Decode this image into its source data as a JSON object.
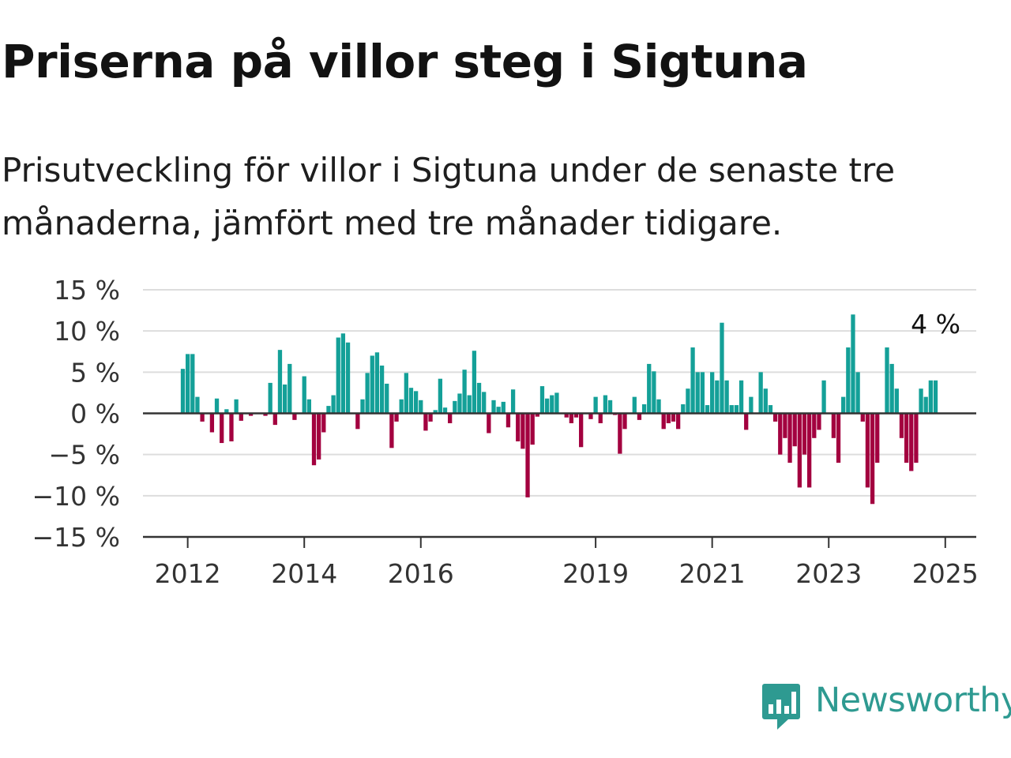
{
  "title": "Priserna på villor steg i Sigtuna",
  "subtitle": "Prisutveckling för villor i Sigtuna under de senaste tre månaderna, jämfört med tre månader tidigare.",
  "brand": {
    "name": "Newsworthy",
    "icon": "newsworthy-logo-icon",
    "color": "#2e9a91"
  },
  "colors": {
    "positive": "#14a098",
    "negative": "#a3003f",
    "grid": "#dddddd",
    "axis": "#333333"
  },
  "chart_data": {
    "type": "bar",
    "title": "",
    "xlabel": "",
    "ylabel": "",
    "ylim": [
      -15,
      15
    ],
    "yticks": [
      15,
      10,
      5,
      0,
      -5,
      -10,
      -15
    ],
    "ytick_labels": [
      "15 %",
      "10 %",
      "5 %",
      "0 %",
      "−5 %",
      "−10 %",
      "−15 %"
    ],
    "xtick_labels": [
      "2012",
      "2014",
      "2016",
      "2019",
      "2021",
      "2023",
      "2025"
    ],
    "xtick_dates": [
      "2012-01",
      "2014-01",
      "2016-01",
      "2019-01",
      "2021-01",
      "2023-01",
      "2025-01"
    ],
    "grid": true,
    "start": "2011-12",
    "last_label": "4 %",
    "values": [
      5.4,
      7.2,
      7.2,
      2.0,
      -1.0,
      0,
      -2.3,
      1.8,
      -3.6,
      0.5,
      -3.4,
      1.7,
      -0.9,
      0,
      -0.3,
      0,
      0,
      -0.3,
      3.7,
      -1.4,
      7.7,
      3.5,
      6.0,
      -0.8,
      0,
      4.5,
      1.7,
      -6.3,
      -5.6,
      -2.3,
      0.9,
      2.2,
      9.2,
      9.7,
      8.6,
      0,
      -1.9,
      1.7,
      4.9,
      7.0,
      7.4,
      5.8,
      3.6,
      -4.2,
      -1.0,
      1.7,
      4.9,
      3.1,
      2.7,
      1.6,
      -2.1,
      -1.0,
      0.4,
      4.2,
      0.7,
      -1.2,
      1.5,
      2.4,
      5.3,
      2.2,
      7.6,
      3.7,
      2.6,
      -2.4,
      1.6,
      0.8,
      1.4,
      -1.7,
      2.9,
      -3.4,
      -4.3,
      -10.2,
      -3.8,
      -0.4,
      3.3,
      1.8,
      2.2,
      2.5,
      0,
      -0.5,
      -1.2,
      -0.5,
      -4.1,
      0,
      -0.7,
      2.0,
      -1.2,
      2.2,
      1.6,
      -0.2,
      -4.9,
      -1.9,
      0,
      2.0,
      -0.8,
      1.1,
      6.0,
      5.1,
      1.7,
      -1.9,
      -1.2,
      -1.0,
      -1.9,
      1.1,
      3.0,
      8.0,
      5.0,
      5.0,
      1.0,
      5.0,
      4.0,
      11.0,
      4.0,
      1.0,
      1.0,
      4.0,
      -2.0,
      2.0,
      0,
      5.0,
      3.0,
      1.0,
      -1.0,
      -5.0,
      -3.0,
      -6.0,
      -4.0,
      -9.0,
      -5.0,
      -9.0,
      -3.0,
      -2.0,
      4.0,
      0,
      -3.0,
      -6.0,
      2.0,
      8.0,
      12.0,
      5.0,
      -1.0,
      -9.0,
      -11.0,
      -6.0,
      0,
      8.0,
      6.0,
      3.0,
      -3.0,
      -6.0,
      -7.0,
      -6.0,
      3.0,
      2.0,
      4.0,
      4.0
    ]
  }
}
